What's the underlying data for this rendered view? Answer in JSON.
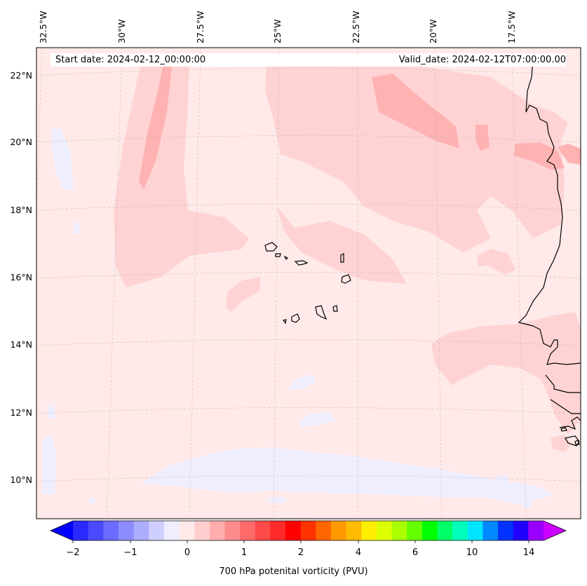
{
  "header": {
    "start_date": "Start date: 2024-02-12_00:00:00",
    "valid_date": "Valid_date: 2024-02-12T07:00:00.00"
  },
  "map": {
    "lon_labels": [
      "32.5°W",
      "30°W",
      "27.5°W",
      "25°W",
      "22.5°W",
      "20°W",
      "17.5°W"
    ],
    "lat_labels": [
      "22°N",
      "20°N",
      "18°N",
      "16°N",
      "14°N",
      "12°N",
      "10°N"
    ],
    "colors": {
      "background": "#ffe9e9",
      "light_pink": "#ffd3d3",
      "pink": "#ffb2b2",
      "lavender": "#eeeeff",
      "coast": "#000000"
    }
  },
  "colorbar": {
    "title": "700 hPa potenital vorticity (PVU)",
    "tick_labels": [
      "−2",
      "−1",
      "0",
      "1",
      "2",
      "4",
      "6",
      "10",
      "14"
    ],
    "colors": [
      "#0000ff",
      "#2a2aff",
      "#4a4aff",
      "#6b6bff",
      "#8c8cff",
      "#adadff",
      "#cfcfff",
      "#eeeeff",
      "#ffe9e9",
      "#ffcfcf",
      "#ffadad",
      "#ff8c8c",
      "#ff6b6b",
      "#ff4a4a",
      "#ff2a2a",
      "#ff0000",
      "#ff3300",
      "#ff6600",
      "#ff9900",
      "#ffbb00",
      "#ffee00",
      "#ddff00",
      "#aaff00",
      "#66ff00",
      "#00ff00",
      "#00ff66",
      "#00ffbb",
      "#00e5ff",
      "#0088ff",
      "#0033ff",
      "#2200ff",
      "#9900ff",
      "#cc00ff"
    ]
  }
}
